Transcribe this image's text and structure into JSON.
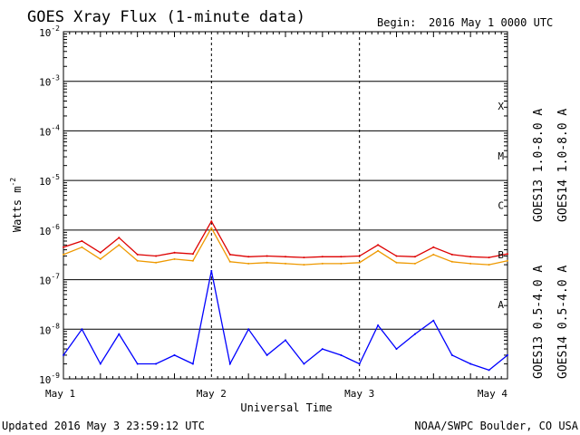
{
  "header": {
    "title": "GOES Xray Flux (1-minute data)",
    "begin_label": "Begin:",
    "begin_value": "2016 May 1 0000 UTC"
  },
  "footer": {
    "updated": "Updated 2016 May  3 23:59:12 UTC",
    "credit": "NOAA/SWPC Boulder, CO USA"
  },
  "chart_data": {
    "type": "line",
    "title": "GOES Xray Flux (1-minute data)",
    "xlabel": "Universal Time",
    "ylabel_base": "Watts m",
    "ylabel_exp": "-2",
    "y_scale": "log",
    "ylim": [
      1e-09,
      0.01
    ],
    "xlim": [
      "2016-05-01",
      "2016-05-04"
    ],
    "x_ticks": [
      "May 1",
      "May 2",
      "May 3",
      "May 4"
    ],
    "y_ticks": [
      {
        "base": "10",
        "exp": "-9"
      },
      {
        "base": "10",
        "exp": "-8"
      },
      {
        "base": "10",
        "exp": "-7"
      },
      {
        "base": "10",
        "exp": "-6"
      },
      {
        "base": "10",
        "exp": "-5"
      },
      {
        "base": "10",
        "exp": "-4"
      },
      {
        "base": "10",
        "exp": "-3"
      },
      {
        "base": "10",
        "exp": "-2"
      }
    ],
    "flare_classes": [
      "A",
      "B",
      "C",
      "M",
      "X"
    ],
    "grid": true,
    "series": [
      {
        "name": "GOES13 1.0-8.0 A",
        "color": "#dd0000",
        "x": [
          "May 1 00:00",
          "May 1 03:00",
          "May 1 06:00",
          "May 1 09:00",
          "May 1 12:00",
          "May 1 15:00",
          "May 1 18:00",
          "May 1 21:00",
          "May 2 00:00",
          "May 2 03:00",
          "May 2 06:00",
          "May 2 09:00",
          "May 2 12:00",
          "May 2 15:00",
          "May 2 18:00",
          "May 2 21:00",
          "May 3 00:00",
          "May 3 03:00",
          "May 3 06:00",
          "May 3 09:00",
          "May 3 12:00",
          "May 3 15:00",
          "May 3 18:00",
          "May 3 21:00",
          "May 3 24:00"
        ],
        "values": [
          4.5e-07,
          6e-07,
          3.5e-07,
          7e-07,
          3.2e-07,
          3e-07,
          3.5e-07,
          3.3e-07,
          1.5e-06,
          3.2e-07,
          2.9e-07,
          3e-07,
          2.9e-07,
          2.8e-07,
          2.9e-07,
          2.9e-07,
          3e-07,
          5e-07,
          3e-07,
          2.9e-07,
          4.5e-07,
          3.2e-07,
          2.9e-07,
          2.8e-07,
          3.3e-07
        ]
      },
      {
        "name": "GOES14 1.0-8.0 A",
        "color": "#ee9900",
        "x": [
          "May 1 00:00",
          "May 1 03:00",
          "May 1 06:00",
          "May 1 09:00",
          "May 1 12:00",
          "May 1 15:00",
          "May 1 18:00",
          "May 1 21:00",
          "May 2 00:00",
          "May 2 03:00",
          "May 2 06:00",
          "May 2 09:00",
          "May 2 12:00",
          "May 2 15:00",
          "May 2 18:00",
          "May 2 21:00",
          "May 3 00:00",
          "May 3 03:00",
          "May 3 06:00",
          "May 3 09:00",
          "May 3 12:00",
          "May 3 15:00",
          "May 3 18:00",
          "May 3 21:00",
          "May 3 24:00"
        ],
        "values": [
          3.2e-07,
          4.5e-07,
          2.6e-07,
          5e-07,
          2.4e-07,
          2.2e-07,
          2.6e-07,
          2.4e-07,
          1.1e-06,
          2.3e-07,
          2.1e-07,
          2.2e-07,
          2.1e-07,
          2e-07,
          2.1e-07,
          2.1e-07,
          2.2e-07,
          3.8e-07,
          2.2e-07,
          2.1e-07,
          3.2e-07,
          2.3e-07,
          2.1e-07,
          2e-07,
          2.4e-07
        ]
      },
      {
        "name": "GOES13 0.5-4.0 A",
        "color": "#0000ff",
        "x": [
          "May 1 00:00",
          "May 1 03:00",
          "May 1 06:00",
          "May 1 09:00",
          "May 1 12:00",
          "May 1 15:00",
          "May 1 18:00",
          "May 1 21:00",
          "May 2 00:00",
          "May 2 03:00",
          "May 2 06:00",
          "May 2 09:00",
          "May 2 12:00",
          "May 2 15:00",
          "May 2 18:00",
          "May 2 21:00",
          "May 3 00:00",
          "May 3 03:00",
          "May 3 06:00",
          "May 3 09:00",
          "May 3 12:00",
          "May 3 15:00",
          "May 3 18:00",
          "May 3 21:00",
          "May 3 24:00"
        ],
        "values": [
          3e-09,
          1e-08,
          2e-09,
          8e-09,
          2e-09,
          2e-09,
          3e-09,
          2e-09,
          1.5e-07,
          2e-09,
          1e-08,
          3e-09,
          6e-09,
          2e-09,
          4e-09,
          3e-09,
          2e-09,
          1.2e-08,
          4e-09,
          8e-09,
          1.5e-08,
          3e-09,
          2e-09,
          1.5e-09,
          3e-09
        ]
      },
      {
        "name": "GOES14 0.5-4.0 A",
        "color": "#8800cc",
        "x": [],
        "values": []
      }
    ]
  }
}
